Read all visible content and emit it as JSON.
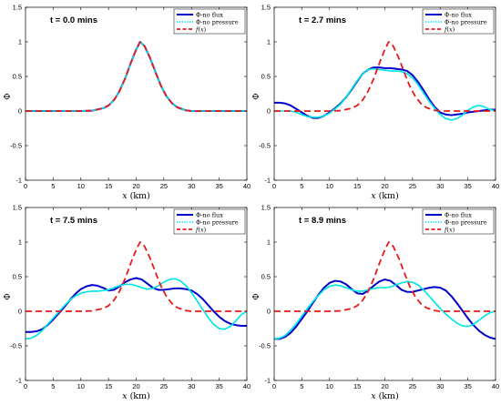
{
  "colors": {
    "no_flux": "#0000cc",
    "no_pressure": "#00e6e6",
    "f": "#e6191a"
  },
  "chart_data": [
    {
      "type": "line",
      "title": "t = 0.0 mins",
      "xlabel": "x (km)",
      "ylabel": "Φ",
      "xlim": [
        0,
        40
      ],
      "ylim": [
        -1,
        1.5
      ],
      "xticks": [
        0,
        5,
        10,
        15,
        20,
        25,
        30,
        35,
        40
      ],
      "yticks": [
        -1,
        -0.5,
        0,
        0.5,
        1,
        1.5
      ],
      "legend_position": "top-right",
      "series": [
        {
          "name": "Φ-no flux",
          "style": "solid",
          "color": "#0000cc",
          "x": [
            0,
            5,
            10,
            12,
            14,
            15,
            16,
            17,
            18,
            19,
            20,
            20.7,
            21.5,
            22.5,
            23.5,
            24.5,
            25.5,
            26.5,
            27.5,
            29,
            30,
            35,
            40
          ],
          "y": [
            0,
            0,
            0,
            0.005,
            0.04,
            0.08,
            0.16,
            0.29,
            0.47,
            0.69,
            0.89,
            1.0,
            0.94,
            0.77,
            0.56,
            0.36,
            0.21,
            0.11,
            0.05,
            0.01,
            0,
            0,
            0
          ]
        },
        {
          "name": "Φ-no pressure",
          "style": "dotted",
          "color": "#00e6e6",
          "x": [
            0,
            5,
            10,
            12,
            14,
            15,
            16,
            17,
            18,
            19,
            20,
            20.7,
            21.5,
            22.5,
            23.5,
            24.5,
            25.5,
            26.5,
            27.5,
            29,
            30,
            35,
            40
          ],
          "y": [
            0,
            0,
            0,
            0.005,
            0.04,
            0.08,
            0.16,
            0.29,
            0.47,
            0.69,
            0.89,
            1.0,
            0.94,
            0.77,
            0.56,
            0.36,
            0.21,
            0.11,
            0.05,
            0.01,
            0,
            0,
            0
          ]
        },
        {
          "name": "f(x)",
          "style": "dashed",
          "color": "#e6191a",
          "x": [
            0,
            5,
            10,
            12,
            14,
            15,
            16,
            17,
            18,
            19,
            20,
            20.7,
            21.5,
            22.5,
            23.5,
            24.5,
            25.5,
            26.5,
            27.5,
            29,
            30,
            35,
            40
          ],
          "y": [
            0,
            0,
            0,
            0.005,
            0.04,
            0.08,
            0.16,
            0.29,
            0.47,
            0.69,
            0.89,
            1.0,
            0.94,
            0.77,
            0.56,
            0.36,
            0.21,
            0.11,
            0.05,
            0.01,
            0,
            0,
            0
          ]
        }
      ]
    },
    {
      "type": "line",
      "title": "t = 2.7 mins",
      "xlabel": "x (km)",
      "ylabel": "Φ",
      "xlim": [
        0,
        40
      ],
      "ylim": [
        -1,
        1.5
      ],
      "xticks": [
        0,
        5,
        10,
        15,
        20,
        25,
        30,
        35,
        40
      ],
      "yticks": [
        -1,
        -0.5,
        0,
        0.5,
        1,
        1.5
      ],
      "legend_position": "top-right",
      "series": [
        {
          "name": "Φ-no flux",
          "style": "solid",
          "color": "#0000cc",
          "x": [
            0,
            1,
            2,
            3,
            4,
            5,
            6,
            7,
            8,
            9,
            10,
            11,
            12,
            13,
            14,
            15,
            16,
            17,
            18,
            19,
            20,
            21,
            22,
            23,
            24,
            25,
            26,
            27,
            28,
            29,
            30,
            31,
            32,
            33,
            34,
            35,
            36,
            37,
            38,
            39,
            40
          ],
          "y": [
            0.12,
            0.12,
            0.11,
            0.08,
            0.03,
            -0.02,
            -0.07,
            -0.1,
            -0.1,
            -0.07,
            -0.02,
            0.04,
            0.11,
            0.2,
            0.31,
            0.43,
            0.54,
            0.6,
            0.63,
            0.63,
            0.62,
            0.62,
            0.61,
            0.6,
            0.58,
            0.52,
            0.42,
            0.3,
            0.17,
            0.06,
            -0.02,
            -0.05,
            -0.06,
            -0.05,
            -0.04,
            -0.02,
            -0.01,
            0,
            0.01,
            0.02,
            0.02
          ]
        },
        {
          "name": "Φ-no pressure",
          "style": "dotted",
          "color": "#00e6e6",
          "x": [
            0,
            1,
            2,
            3,
            4,
            5,
            6,
            7,
            8,
            9,
            10,
            11,
            12,
            13,
            14,
            15,
            16,
            17,
            18,
            19,
            20,
            21,
            22,
            23,
            24,
            25,
            26,
            27,
            28,
            29,
            30,
            31,
            32,
            33,
            34,
            35,
            36,
            37,
            38,
            39,
            40
          ],
          "y": [
            0,
            0,
            0,
            0,
            -0.02,
            -0.05,
            -0.08,
            -0.09,
            -0.09,
            -0.07,
            -0.03,
            0.03,
            0.1,
            0.2,
            0.32,
            0.44,
            0.54,
            0.6,
            0.61,
            0.6,
            0.59,
            0.58,
            0.58,
            0.57,
            0.54,
            0.48,
            0.38,
            0.26,
            0.14,
            0.04,
            -0.05,
            -0.11,
            -0.13,
            -0.11,
            -0.06,
            0.01,
            0.06,
            0.08,
            0.06,
            0.02,
            0
          ]
        },
        {
          "name": "f(x)",
          "style": "dashed",
          "color": "#e6191a",
          "x": [
            0,
            5,
            10,
            12,
            14,
            15,
            16,
            17,
            18,
            19,
            20,
            20.7,
            21.5,
            22.5,
            23.5,
            24.5,
            25.5,
            26.5,
            27.5,
            29,
            30,
            35,
            40
          ],
          "y": [
            0,
            0,
            0,
            0.005,
            0.04,
            0.08,
            0.16,
            0.29,
            0.47,
            0.69,
            0.89,
            1.0,
            0.94,
            0.77,
            0.56,
            0.36,
            0.21,
            0.11,
            0.05,
            0.01,
            0,
            0,
            0
          ]
        }
      ]
    },
    {
      "type": "line",
      "title": "t = 7.5 mins",
      "xlabel": "x (km)",
      "ylabel": "Φ",
      "xlim": [
        0,
        40
      ],
      "ylim": [
        -1,
        1.5
      ],
      "xticks": [
        0,
        5,
        10,
        15,
        20,
        25,
        30,
        35,
        40
      ],
      "yticks": [
        -1,
        -0.5,
        0,
        0.5,
        1,
        1.5
      ],
      "legend_position": "top-right",
      "series": [
        {
          "name": "Φ-no flux",
          "style": "solid",
          "color": "#0000cc",
          "x": [
            0,
            1,
            2,
            3,
            4,
            5,
            6,
            7,
            8,
            9,
            10,
            11,
            12,
            13,
            14,
            15,
            16,
            17,
            18,
            19,
            20,
            21,
            22,
            23,
            24,
            25,
            26,
            27,
            28,
            29,
            30,
            31,
            32,
            33,
            34,
            35,
            36,
            37,
            38,
            39,
            40
          ],
          "y": [
            -0.3,
            -0.3,
            -0.29,
            -0.26,
            -0.2,
            -0.12,
            -0.03,
            0.06,
            0.16,
            0.25,
            0.32,
            0.36,
            0.38,
            0.37,
            0.34,
            0.3,
            0.31,
            0.36,
            0.42,
            0.46,
            0.48,
            0.46,
            0.4,
            0.34,
            0.31,
            0.31,
            0.32,
            0.33,
            0.33,
            0.32,
            0.3,
            0.25,
            0.18,
            0.09,
            0,
            -0.08,
            -0.14,
            -0.18,
            -0.2,
            -0.21,
            -0.21
          ]
        },
        {
          "name": "Φ-no pressure",
          "style": "dotted",
          "color": "#00e6e6",
          "x": [
            0,
            1,
            2,
            3,
            4,
            5,
            6,
            7,
            8,
            9,
            10,
            11,
            12,
            13,
            14,
            15,
            16,
            17,
            18,
            19,
            20,
            21,
            22,
            23,
            24,
            25,
            26,
            27,
            28,
            29,
            30,
            31,
            32,
            33,
            34,
            35,
            36,
            37,
            38,
            39,
            40
          ],
          "y": [
            -0.4,
            -0.39,
            -0.35,
            -0.28,
            -0.19,
            -0.1,
            -0.01,
            0.08,
            0.16,
            0.22,
            0.26,
            0.28,
            0.29,
            0.29,
            0.3,
            0.31,
            0.34,
            0.37,
            0.39,
            0.39,
            0.37,
            0.34,
            0.32,
            0.33,
            0.37,
            0.42,
            0.46,
            0.47,
            0.44,
            0.37,
            0.27,
            0.15,
            0.03,
            -0.09,
            -0.19,
            -0.25,
            -0.26,
            -0.22,
            -0.14,
            -0.05,
            0
          ]
        },
        {
          "name": "f(x)",
          "style": "dashed",
          "color": "#e6191a",
          "x": [
            0,
            5,
            10,
            12,
            14,
            15,
            16,
            17,
            18,
            19,
            20,
            20.7,
            21.5,
            22.5,
            23.5,
            24.5,
            25.5,
            26.5,
            27.5,
            29,
            30,
            35,
            40
          ],
          "y": [
            0,
            0,
            0,
            0.005,
            0.04,
            0.08,
            0.16,
            0.29,
            0.47,
            0.69,
            0.89,
            1.0,
            0.94,
            0.77,
            0.56,
            0.36,
            0.21,
            0.11,
            0.05,
            0.01,
            0,
            0,
            0
          ]
        }
      ]
    },
    {
      "type": "line",
      "title": "t = 8.9 mins",
      "xlabel": "x (km)",
      "ylabel": "Φ",
      "xlim": [
        0,
        40
      ],
      "ylim": [
        -1,
        1.5
      ],
      "xticks": [
        0,
        5,
        10,
        15,
        20,
        25,
        30,
        35,
        40
      ],
      "yticks": [
        -1,
        -0.5,
        0,
        0.5,
        1,
        1.5
      ],
      "legend_position": "top-right",
      "series": [
        {
          "name": "Φ-no flux",
          "style": "solid",
          "color": "#0000cc",
          "x": [
            0,
            1,
            2,
            3,
            4,
            5,
            6,
            7,
            8,
            9,
            10,
            11,
            12,
            13,
            14,
            15,
            16,
            17,
            18,
            19,
            20,
            21,
            22,
            23,
            24,
            25,
            26,
            27,
            28,
            29,
            30,
            31,
            32,
            33,
            34,
            35,
            36,
            37,
            38,
            39,
            40
          ],
          "y": [
            -0.4,
            -0.4,
            -0.37,
            -0.31,
            -0.22,
            -0.11,
            0,
            0.12,
            0.24,
            0.34,
            0.41,
            0.44,
            0.43,
            0.39,
            0.32,
            0.26,
            0.25,
            0.3,
            0.37,
            0.43,
            0.46,
            0.44,
            0.38,
            0.31,
            0.28,
            0.28,
            0.3,
            0.32,
            0.34,
            0.35,
            0.34,
            0.3,
            0.22,
            0.12,
            0.01,
            -0.1,
            -0.2,
            -0.28,
            -0.34,
            -0.38,
            -0.4
          ]
        },
        {
          "name": "Φ-no pressure",
          "style": "dotted",
          "color": "#00e6e6",
          "x": [
            0,
            1,
            2,
            3,
            4,
            5,
            6,
            7,
            8,
            9,
            10,
            11,
            12,
            13,
            14,
            15,
            16,
            17,
            18,
            19,
            20,
            21,
            22,
            23,
            24,
            25,
            26,
            27,
            28,
            29,
            30,
            31,
            32,
            33,
            34,
            35,
            36,
            37,
            38,
            39,
            40
          ],
          "y": [
            -0.4,
            -0.39,
            -0.35,
            -0.27,
            -0.18,
            -0.07,
            0.04,
            0.14,
            0.23,
            0.31,
            0.36,
            0.38,
            0.37,
            0.34,
            0.31,
            0.29,
            0.29,
            0.31,
            0.33,
            0.34,
            0.34,
            0.35,
            0.38,
            0.41,
            0.43,
            0.42,
            0.38,
            0.31,
            0.22,
            0.13,
            0.04,
            -0.04,
            -0.11,
            -0.17,
            -0.21,
            -0.22,
            -0.19,
            -0.13,
            -0.07,
            -0.02,
            0
          ]
        },
        {
          "name": "f(x)",
          "style": "dashed",
          "color": "#e6191a",
          "x": [
            0,
            5,
            10,
            12,
            14,
            15,
            16,
            17,
            18,
            19,
            20,
            20.7,
            21.5,
            22.5,
            23.5,
            24.5,
            25.5,
            26.5,
            27.5,
            29,
            30,
            35,
            40
          ],
          "y": [
            0,
            0,
            0,
            0.005,
            0.04,
            0.08,
            0.16,
            0.29,
            0.47,
            0.69,
            0.89,
            1.0,
            0.94,
            0.77,
            0.56,
            0.36,
            0.21,
            0.11,
            0.05,
            0.01,
            0,
            0,
            0
          ]
        }
      ]
    }
  ]
}
